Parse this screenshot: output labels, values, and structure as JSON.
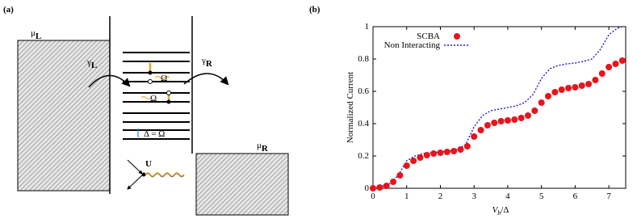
{
  "panel_a": {
    "label": "(a)",
    "mu_L": {
      "main": "μ",
      "sub": "L"
    },
    "mu_R": {
      "main": "μ",
      "sub": "R"
    },
    "gamma_L": {
      "main": "γ",
      "sub": "L"
    },
    "gamma_R": {
      "main": "γ",
      "sub": "R"
    },
    "omega_upper": "Ω",
    "omega_lower": "Ω",
    "spacing": "Δ = Ω",
    "interaction": "U"
  },
  "chart_data": {
    "type": "scatter",
    "panel_label": "(b)",
    "x_label": {
      "main": "V",
      "sub": "b",
      "rest": "/Δ"
    },
    "y_label": "Normalized Current",
    "xlim": [
      0,
      7.5
    ],
    "ylim": [
      0,
      1
    ],
    "xticks": [
      0,
      1,
      2,
      3,
      4,
      5,
      6,
      7
    ],
    "yticks": [
      0,
      0.2,
      0.4,
      0.6,
      0.8,
      1
    ],
    "legend": "upper left",
    "series": [
      {
        "name": "SCBA",
        "color": "#e8141c",
        "style": "markers",
        "x": [
          0,
          0.2,
          0.4,
          0.6,
          0.8,
          1.0,
          1.2,
          1.4,
          1.6,
          1.8,
          2.0,
          2.2,
          2.4,
          2.6,
          2.8,
          3.0,
          3.2,
          3.4,
          3.6,
          3.8,
          4.0,
          4.2,
          4.4,
          4.6,
          4.8,
          5.0,
          5.2,
          5.4,
          5.6,
          5.8,
          6.0,
          6.2,
          6.4,
          6.6,
          6.8,
          7.0,
          7.2,
          7.4
        ],
        "values": [
          0,
          0.005,
          0.015,
          0.04,
          0.08,
          0.14,
          0.17,
          0.19,
          0.205,
          0.215,
          0.22,
          0.225,
          0.23,
          0.24,
          0.26,
          0.32,
          0.36,
          0.39,
          0.405,
          0.415,
          0.42,
          0.425,
          0.435,
          0.45,
          0.48,
          0.53,
          0.57,
          0.595,
          0.61,
          0.62,
          0.625,
          0.635,
          0.645,
          0.67,
          0.71,
          0.75,
          0.77,
          0.79
        ]
      },
      {
        "name": "Non Interacting",
        "color": "#1a1adc",
        "style": "dotted-line",
        "x": [
          0,
          0.25,
          0.5,
          0.75,
          1.0,
          1.25,
          1.5,
          1.75,
          2.0,
          2.25,
          2.5,
          2.75,
          3.0,
          3.25,
          3.5,
          3.75,
          4.0,
          4.25,
          4.5,
          4.75,
          5.0,
          5.25,
          5.5,
          5.75,
          6.0,
          6.25,
          6.5,
          6.75,
          7.0,
          7.25,
          7.4
        ],
        "values": [
          0,
          0.01,
          0.03,
          0.08,
          0.17,
          0.2,
          0.215,
          0.22,
          0.225,
          0.23,
          0.24,
          0.27,
          0.38,
          0.45,
          0.48,
          0.49,
          0.5,
          0.51,
          0.53,
          0.58,
          0.68,
          0.74,
          0.76,
          0.77,
          0.775,
          0.785,
          0.8,
          0.86,
          0.95,
          0.99,
          1.0
        ]
      }
    ]
  }
}
